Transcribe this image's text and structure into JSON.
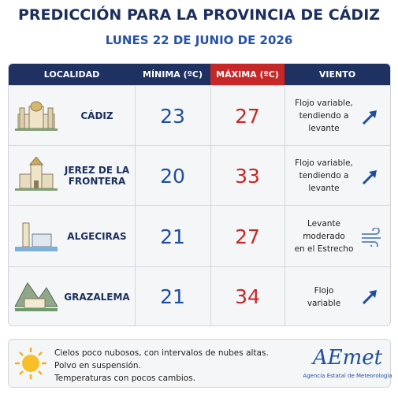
{
  "header": {
    "title": "PREDICCIÓN PARA LA PROVINCIA DE CÁDIZ",
    "subtitle": "LUNES 22 DE JUNIO DE 2026"
  },
  "table": {
    "columns": [
      "LOCALIDAD",
      "MÍNIMA (ºC)",
      "MÁXIMA (ºC)",
      "VIENTO"
    ],
    "rows": [
      {
        "locality": "CÁDIZ",
        "min": "23",
        "max": "27",
        "wind": [
          "Flojo variable,",
          "tendiendo a",
          "levante"
        ]
      },
      {
        "locality": "JEREZ DE LA FRONTERA",
        "min": "20",
        "max": "33",
        "wind": [
          "Flojo variable,",
          "tendiendo a",
          "levante"
        ]
      },
      {
        "locality": "ALGECIRAS",
        "min": "21",
        "max": "27",
        "wind": [
          "Levante moderado",
          "en el Estrecho"
        ]
      },
      {
        "locality": "GRAZALEMA",
        "min": "21",
        "max": "34",
        "wind": [
          "Flojo",
          "variable"
        ]
      }
    ]
  },
  "footer": {
    "notes": [
      "Cielos poco nubosos, con intervalos de nubes altas.",
      "Polvo en suspensión.",
      "Temperaturas con pocos cambios."
    ],
    "logo": "AEmet",
    "agency": "Agencia Estatal de Meteorología"
  }
}
